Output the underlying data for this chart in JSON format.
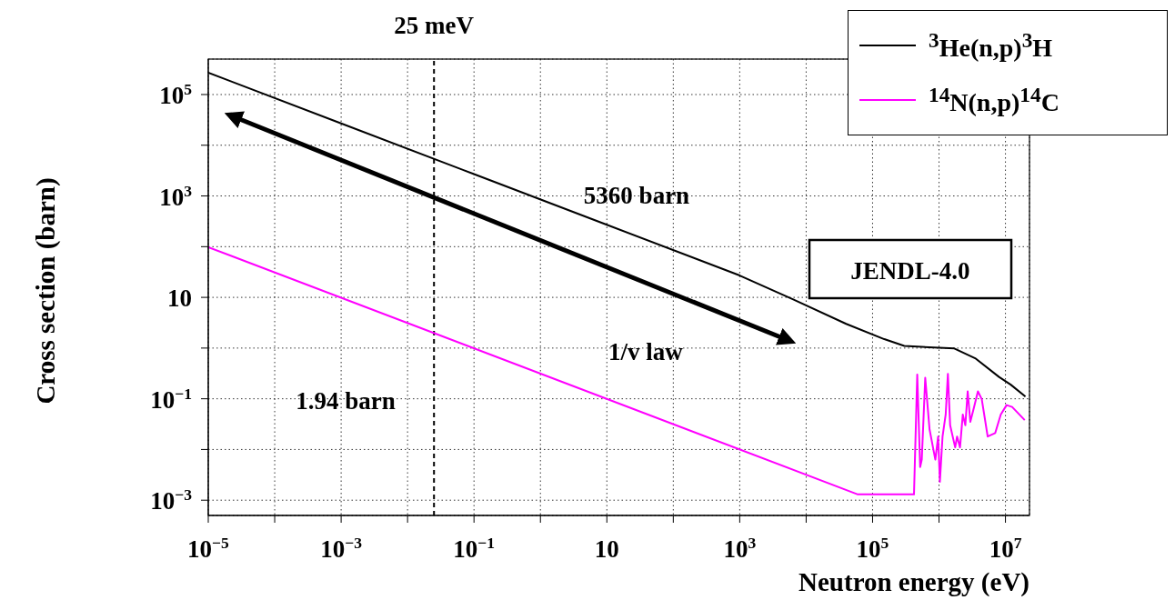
{
  "chart_data": {
    "type": "line",
    "xlabel": "Neutron energy (eV)",
    "ylabel": "Cross section (barn)",
    "log": "xy",
    "grid": true,
    "legend": "top right",
    "marker": "none",
    "line_style": "solid",
    "xlim": [
      1e-05,
      23000000.0
    ],
    "xticks": [
      {
        "value": 1e-05,
        "label": "10$^{−5}$"
      },
      {
        "value": 0.0001,
        "label": null
      },
      {
        "value": 0.001,
        "label": "10$^{−3}$"
      },
      {
        "value": 0.01,
        "label": null
      },
      {
        "value": 0.1,
        "label": "10$^{−1}$"
      },
      {
        "value": 1,
        "label": null
      },
      10,
      {
        "value": 100,
        "label": null
      },
      {
        "value": 1000,
        "label": "10$^{3}$"
      },
      {
        "value": 10000,
        "label": null
      },
      {
        "value": 100000,
        "label": "10$^{5}$"
      },
      {
        "value": 1000000,
        "label": null
      },
      {
        "value": 10000000,
        "label": "10$^{7}$"
      }
    ],
    "ylim": [
      0.0005,
      500000.0
    ],
    "yticks": [
      {
        "value": 0.001,
        "label": "10$^{−3}$"
      },
      {
        "value": 0.01,
        "label": null
      },
      {
        "value": 0.1,
        "label": "10$^{−1}$"
      },
      {
        "value": 1,
        "label": null
      },
      10,
      {
        "value": 100,
        "label": null
      },
      {
        "value": 1000,
        "label": "10$^{3}$"
      },
      {
        "value": 10000,
        "label": null
      },
      {
        "value": 100000,
        "label": "10$^{5}$"
      }
    ],
    "series": [
      {
        "name": "$^{3}$He(n,p)$^{3}$H",
        "color": "#000000",
        "x": [
          1e-05,
          0.001,
          0.1,
          10,
          1000,
          6500,
          40000,
          150000,
          300000,
          1700000,
          3500000,
          8000000,
          12000000,
          20000000
        ],
        "values": [
          270000,
          27000,
          2700,
          270,
          27,
          9,
          3,
          1.5,
          1.1,
          0.98,
          0.63,
          0.27,
          0.19,
          0.11
        ]
      },
      {
        "name": "$^{14}$N(n,p)$^{14}$C",
        "color": "#ff00ff",
        "x": [
          1e-05,
          60000,
          420000,
          470000,
          520000,
          550000,
          620000,
          720000,
          880000,
          970000,
          1030000,
          1130000,
          1260000,
          1360000,
          1470000,
          1750000,
          1870000,
          2070000,
          2280000,
          2490000,
          2700000,
          2960000,
          3370000,
          3850000,
          4400000,
          5400000,
          7000000,
          8500000,
          10400000,
          12600000,
          19500000
        ],
        "values": [
          98,
          0.0013,
          0.0013,
          0.3,
          0.0045,
          0.0063,
          0.26,
          0.025,
          0.0063,
          0.018,
          0.0023,
          0.018,
          0.049,
          0.31,
          0.03,
          0.011,
          0.018,
          0.011,
          0.049,
          0.03,
          0.14,
          0.035,
          0.069,
          0.14,
          0.098,
          0.018,
          0.021,
          0.049,
          0.075,
          0.069,
          0.038
        ]
      }
    ],
    "ref_lines": [
      {
        "axis": "x",
        "value": 0.025,
        "label": "25 meV",
        "line_style": "dashed",
        "color": "#000000"
      }
    ],
    "annotations": [
      "5360 barn",
      "1.94 barn",
      "1/v law",
      "JENDL-4.0"
    ]
  }
}
